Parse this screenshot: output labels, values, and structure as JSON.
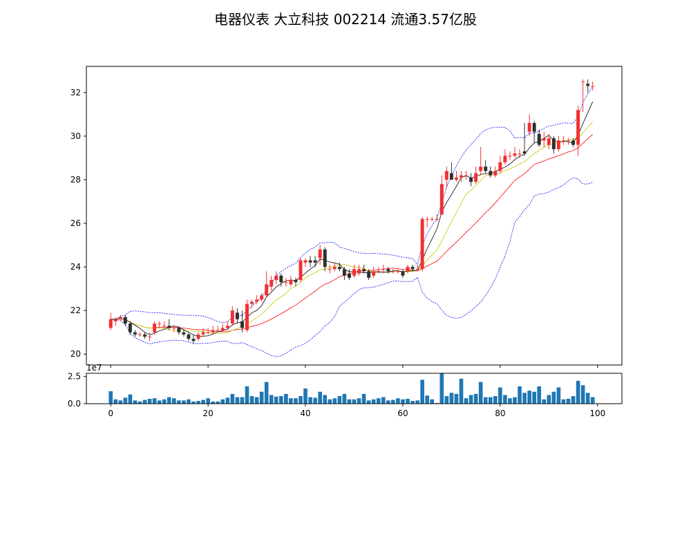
{
  "chart_data": {
    "type": "candlestick",
    "title": "电器仪表 大立科技 002214 流通3.57亿股",
    "x": [
      0,
      1,
      2,
      3,
      4,
      5,
      6,
      7,
      8,
      9,
      10,
      11,
      12,
      13,
      14,
      15,
      16,
      17,
      18,
      19,
      20,
      21,
      22,
      23,
      24,
      25,
      26,
      27,
      28,
      29,
      30,
      31,
      32,
      33,
      34,
      35,
      36,
      37,
      38,
      39,
      40,
      41,
      42,
      43,
      44,
      45,
      46,
      47,
      48,
      49,
      50,
      51,
      52,
      53,
      54,
      55,
      56,
      57,
      58,
      59,
      60,
      61,
      62,
      63,
      64,
      65,
      66,
      67,
      68,
      69,
      70,
      71,
      72,
      73,
      74,
      75,
      76,
      77,
      78,
      79,
      80,
      81,
      82,
      83,
      84,
      85,
      86,
      87,
      88,
      89,
      90,
      91,
      92,
      93,
      94,
      95,
      96,
      97,
      98,
      99
    ],
    "xlim": [
      -5,
      105
    ],
    "price_ylim": [
      19.5,
      33.2
    ],
    "price_yticks": [
      20,
      22,
      24,
      26,
      28,
      30,
      32
    ],
    "volume_ylim": [
      0,
      28000000.0
    ],
    "volume_yticks": [
      0.0,
      2.5
    ],
    "volume_yticklabels": [
      "0.0",
      "2.5"
    ],
    "volume_offset_label": "1e7",
    "xticks": [
      0,
      20,
      40,
      60,
      80,
      100
    ],
    "close": [
      21.6,
      21.6,
      21.7,
      21.4,
      21.0,
      20.9,
      20.9,
      20.8,
      20.8,
      21.4,
      21.4,
      21.3,
      21.2,
      21.2,
      21.0,
      20.9,
      20.7,
      20.6,
      20.9,
      21.0,
      21.0,
      21.1,
      21.1,
      21.2,
      21.3,
      22.0,
      21.6,
      21.2,
      22.3,
      22.4,
      22.5,
      22.7,
      23.2,
      23.4,
      23.6,
      23.3,
      23.3,
      23.4,
      23.3,
      24.3,
      24.3,
      24.2,
      24.2,
      24.8,
      24.0,
      23.9,
      24.0,
      23.9,
      23.6,
      23.5,
      23.9,
      23.9,
      23.8,
      23.5,
      23.8,
      23.8,
      23.9,
      23.8,
      23.8,
      23.8,
      23.6,
      24.0,
      23.9,
      23.9,
      26.2,
      26.2,
      26.2,
      26.2,
      27.8,
      28.4,
      28.0,
      28.1,
      28.2,
      28.2,
      27.9,
      28.3,
      28.6,
      28.4,
      28.2,
      28.4,
      28.8,
      29.1,
      29.1,
      29.2,
      29.2,
      29.2,
      30.6,
      30.2,
      29.6,
      29.9,
      29.9,
      29.4,
      29.8,
      29.8,
      29.8,
      29.6,
      31.2,
      32.5,
      32.3,
      32.3
    ],
    "open": [
      21.2,
      21.5,
      21.6,
      21.7,
      21.4,
      21.0,
      20.9,
      20.9,
      20.8,
      21.0,
      21.4,
      21.3,
      21.3,
      21.2,
      21.2,
      21.0,
      20.9,
      20.7,
      20.7,
      20.9,
      21.0,
      21.0,
      21.1,
      21.1,
      21.2,
      21.4,
      21.9,
      21.5,
      21.1,
      22.3,
      22.4,
      22.5,
      22.7,
      23.1,
      23.4,
      23.6,
      23.3,
      23.2,
      23.4,
      23.4,
      24.2,
      24.3,
      24.3,
      24.4,
      24.8,
      23.9,
      23.9,
      24.0,
      23.9,
      23.7,
      23.6,
      23.7,
      23.9,
      23.8,
      23.6,
      23.8,
      23.9,
      23.9,
      23.8,
      23.8,
      23.8,
      23.8,
      24.0,
      23.9,
      23.9,
      26.2,
      26.2,
      26.2,
      26.4,
      28.0,
      28.3,
      28.0,
      28.1,
      28.2,
      28.1,
      27.9,
      28.4,
      28.6,
      28.4,
      28.2,
      28.4,
      28.8,
      29.1,
      29.1,
      29.2,
      29.3,
      30.2,
      30.6,
      30.1,
      29.8,
      29.6,
      29.9,
      29.4,
      29.8,
      29.8,
      29.8,
      29.6,
      32.5,
      32.4,
      32.3
    ],
    "high": [
      21.9,
      21.7,
      21.8,
      21.8,
      21.5,
      21.1,
      21.0,
      21.0,
      21.0,
      21.5,
      21.5,
      21.5,
      21.6,
      21.3,
      21.3,
      21.1,
      21.0,
      20.9,
      21.0,
      21.2,
      21.2,
      21.3,
      21.3,
      21.4,
      21.5,
      22.2,
      22.1,
      22.0,
      22.5,
      22.5,
      22.7,
      22.8,
      23.8,
      23.6,
      23.8,
      23.7,
      23.5,
      23.6,
      23.5,
      24.4,
      24.4,
      24.5,
      24.5,
      25.0,
      24.9,
      24.1,
      24.2,
      24.2,
      24.0,
      23.9,
      24.1,
      24.1,
      24.1,
      23.9,
      24.0,
      24.0,
      24.1,
      24.0,
      23.9,
      23.9,
      23.9,
      24.1,
      24.1,
      24.1,
      26.3,
      26.3,
      26.3,
      26.4,
      28.2,
      28.6,
      28.8,
      28.4,
      28.4,
      28.4,
      28.3,
      28.6,
      29.5,
      28.9,
      28.6,
      28.6,
      29.1,
      29.4,
      29.3,
      29.5,
      29.4,
      30.6,
      31.0,
      30.7,
      30.3,
      30.2,
      30.1,
      30.0,
      30.0,
      30.0,
      29.9,
      29.9,
      31.4,
      32.6,
      32.6,
      32.5
    ],
    "low": [
      21.1,
      21.3,
      21.5,
      21.3,
      20.9,
      20.8,
      20.8,
      20.7,
      20.6,
      20.9,
      21.2,
      21.2,
      21.1,
      21.0,
      20.9,
      20.8,
      20.6,
      20.5,
      20.6,
      20.8,
      20.9,
      20.9,
      21.0,
      21.0,
      21.1,
      21.3,
      21.4,
      21.0,
      21.0,
      22.1,
      22.3,
      22.4,
      22.6,
      22.9,
      23.2,
      23.1,
      23.1,
      23.1,
      23.1,
      23.3,
      24.0,
      24.0,
      24.0,
      24.1,
      23.8,
      23.7,
      23.8,
      23.8,
      23.4,
      23.4,
      23.5,
      23.6,
      23.7,
      23.4,
      23.5,
      23.7,
      23.7,
      23.7,
      23.7,
      23.7,
      23.5,
      23.7,
      23.8,
      23.8,
      23.8,
      25.8,
      26.1,
      26.1,
      26.4,
      27.6,
      28.0,
      27.9,
      27.9,
      28.0,
      27.7,
      27.8,
      28.2,
      28.3,
      28.1,
      28.1,
      28.3,
      28.7,
      28.9,
      29.0,
      29.0,
      29.1,
      30.0,
      29.7,
      29.5,
      29.5,
      29.4,
      29.2,
      29.3,
      29.6,
      29.6,
      29.5,
      29.1,
      31.1,
      32.0,
      32.1
    ],
    "volume": [
      11500000.0,
      4000000.0,
      3000000.0,
      5500000.0,
      8500000.0,
      3000000.0,
      2000000.0,
      3500000.0,
      4500000.0,
      5000000.0,
      3000000.0,
      4000000.0,
      6000000.0,
      5000000.0,
      3000000.0,
      3000000.0,
      4000000.0,
      2000000.0,
      2500000.0,
      3500000.0,
      5000000.0,
      2000000.0,
      2000000.0,
      4000000.0,
      5500000.0,
      9000000.0,
      6000000.0,
      6000000.0,
      16000000.0,
      7000000.0,
      6000000.0,
      11000000.0,
      20000000.0,
      8000000.0,
      6500000.0,
      7000000.0,
      9000000.0,
      5000000.0,
      5000000.0,
      7000000.0,
      14000000.0,
      6000000.0,
      5500000.0,
      11000000.0,
      8000000.0,
      4000000.0,
      5000000.0,
      7000000.0,
      9000000.0,
      4000000.0,
      4000000.0,
      5000000.0,
      9000000.0,
      3000000.0,
      4000000.0,
      5000000.0,
      6000000.0,
      3000000.0,
      3500000.0,
      5000000.0,
      4000000.0,
      4500000.0,
      2500000.0,
      3000000.0,
      22000000.0,
      7500000.0,
      4000000.0,
      600000.0,
      28000000.0,
      7000000.0,
      10000000.0,
      9000000.0,
      23000000.0,
      5000000.0,
      8000000.0,
      9000000.0,
      20000000.0,
      6000000.0,
      6000000.0,
      7000000.0,
      15000000.0,
      8000000.0,
      5000000.0,
      6000000.0,
      16000000.0,
      10000000.0,
      12000000.0,
      11000000.0,
      16000000.0,
      4000000.0,
      8000000.0,
      11000000.0,
      15000000.0,
      4000000.0,
      4500000.0,
      7000000.0,
      21000000.0,
      17000000.0,
      10000000.0,
      6000000.0
    ],
    "series": [],
    "colors": {
      "up": "#f23030",
      "down": "#2f2f2f",
      "ma_fast": "#000000",
      "ma_mid": "#c8c800",
      "ma_slow": "#ff0000",
      "bollinger": "#0000ff",
      "volume": "#1f77b4"
    },
    "legend": "none",
    "grid": false
  }
}
